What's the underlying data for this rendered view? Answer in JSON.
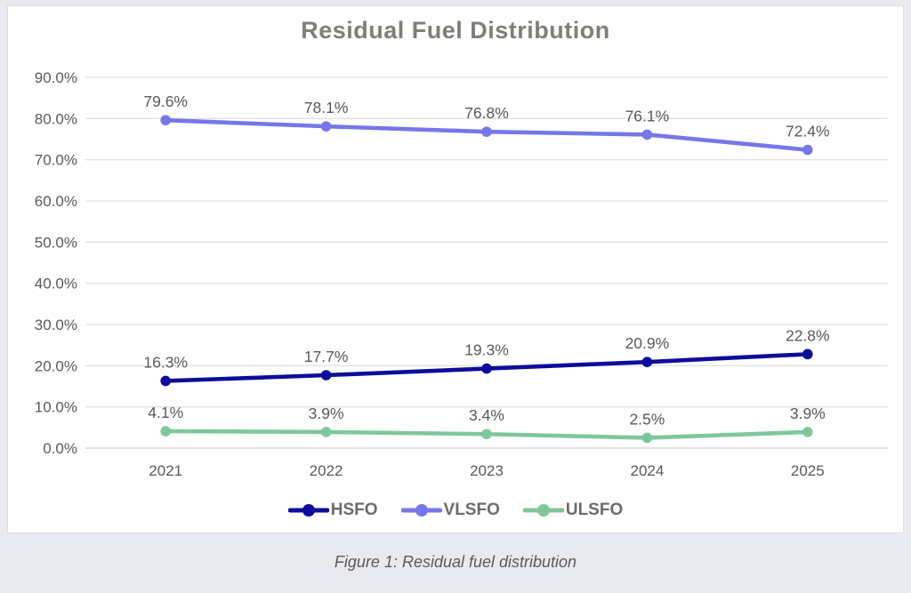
{
  "chart_data": {
    "type": "line",
    "title": "Residual Fuel Distribution",
    "x": [
      "2021",
      "2022",
      "2023",
      "2024",
      "2025"
    ],
    "series": [
      {
        "name": "HSFO",
        "color": "#0d0d9c",
        "values": [
          16.3,
          17.7,
          19.3,
          20.9,
          22.8
        ]
      },
      {
        "name": "VLSFO",
        "color": "#7577e8",
        "values": [
          79.6,
          78.1,
          76.8,
          76.1,
          72.4
        ]
      },
      {
        "name": "ULSFO",
        "color": "#7ec79b",
        "values": [
          4.1,
          3.9,
          3.4,
          2.5,
          3.9
        ]
      }
    ],
    "ylim": [
      0,
      90
    ],
    "ytick_step": 10,
    "ytick_labels": [
      "0.0%",
      "10.0%",
      "20.0%",
      "30.0%",
      "40.0%",
      "50.0%",
      "60.0%",
      "70.0%",
      "80.0%",
      "90.0%"
    ],
    "grid": true,
    "legend_position": "bottom",
    "data_labels_format": "0.0%"
  },
  "caption": "Figure 1: Residual fuel distribution",
  "colors": {
    "background": "#e9eaef",
    "panel": "#ffffff",
    "grid": "#e2e2e2",
    "baseline": "#cfcfcf",
    "axis_text": "#595959",
    "title_text": "#7f7f7a",
    "legend_text": "#6b6b6b",
    "caption_text": "#5a5a5a"
  }
}
